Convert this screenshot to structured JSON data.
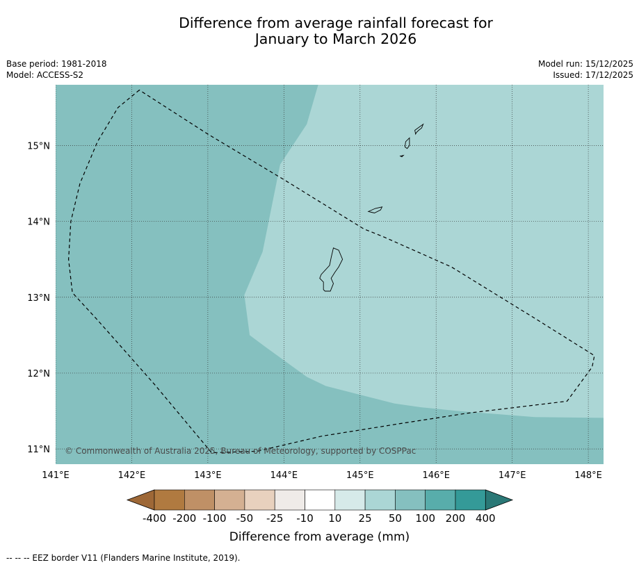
{
  "title": {
    "line1": "Difference from average rainfall forecast for",
    "line2": "January to March 2026"
  },
  "meta": {
    "base_period": "Base period: 1981-2018",
    "model": "Model: ACCESS-S2",
    "model_run": "Model run: 15/12/2025",
    "issued": "Issued: 17/12/2025"
  },
  "map": {
    "lon_range": [
      141.0,
      148.2
    ],
    "lat_range": [
      10.8,
      15.8
    ],
    "lon_ticks": [
      141,
      142,
      143,
      144,
      145,
      146,
      147,
      148
    ],
    "lat_ticks": [
      11,
      12,
      13,
      14,
      15
    ],
    "lon_labels": [
      "141°E",
      "142°E",
      "143°E",
      "144°E",
      "145°E",
      "146°E",
      "147°E",
      "148°E"
    ],
    "lat_labels": [
      "11°N",
      "12°N",
      "13°N",
      "14°N",
      "15°N"
    ],
    "background_category": "50 to 100",
    "background_color": "#85c0bf",
    "region_category": "25 to 50",
    "region_color": "#abd6d5",
    "region_25_50": [
      [
        144.45,
        15.8
      ],
      [
        144.3,
        15.28
      ],
      [
        143.95,
        14.75
      ],
      [
        143.72,
        13.6
      ],
      [
        143.48,
        13.03
      ],
      [
        143.55,
        12.5
      ],
      [
        143.75,
        12.35
      ],
      [
        144.3,
        11.95
      ],
      [
        144.55,
        11.83
      ],
      [
        145.45,
        11.6
      ],
      [
        145.8,
        11.55
      ],
      [
        146.3,
        11.5
      ],
      [
        147.3,
        11.42
      ],
      [
        148.2,
        11.41
      ],
      [
        148.2,
        15.8
      ]
    ],
    "eez_border": [
      [
        142.1,
        15.73
      ],
      [
        141.82,
        15.5
      ],
      [
        141.55,
        15.05
      ],
      [
        141.32,
        14.5
      ],
      [
        141.2,
        14.0
      ],
      [
        141.17,
        13.5
      ],
      [
        141.22,
        13.06
      ],
      [
        141.55,
        12.7
      ],
      [
        142.3,
        11.85
      ],
      [
        143.05,
        10.95
      ],
      [
        143.65,
        10.97
      ],
      [
        144.5,
        11.17
      ],
      [
        145.5,
        11.33
      ],
      [
        146.4,
        11.47
      ],
      [
        147.72,
        11.63
      ],
      [
        148.05,
        12.08
      ],
      [
        148.08,
        12.23
      ],
      [
        147.3,
        12.72
      ],
      [
        146.2,
        13.4
      ],
      [
        145.3,
        13.8
      ],
      [
        145.05,
        13.9
      ],
      [
        144.0,
        14.55
      ],
      [
        143.0,
        15.15
      ],
      [
        142.1,
        15.73
      ]
    ],
    "islands": [
      {
        "name": "Guam",
        "coords": [
          [
            144.65,
            13.65
          ],
          [
            144.72,
            13.62
          ],
          [
            144.77,
            13.5
          ],
          [
            144.72,
            13.4
          ],
          [
            144.67,
            13.33
          ],
          [
            144.62,
            13.25
          ],
          [
            144.65,
            13.18
          ],
          [
            144.61,
            13.08
          ],
          [
            144.54,
            13.08
          ],
          [
            144.52,
            13.1
          ],
          [
            144.52,
            13.2
          ],
          [
            144.47,
            13.25
          ],
          [
            144.49,
            13.3
          ],
          [
            144.6,
            13.42
          ],
          [
            144.62,
            13.52
          ]
        ]
      },
      {
        "name": "Rota",
        "coords": [
          [
            145.11,
            14.13
          ],
          [
            145.2,
            14.17
          ],
          [
            145.29,
            14.19
          ],
          [
            145.27,
            14.15
          ],
          [
            145.19,
            14.11
          ],
          [
            145.15,
            14.12
          ]
        ]
      },
      {
        "name": "Saipan",
        "coords": [
          [
            145.72,
            15.2
          ],
          [
            145.83,
            15.28
          ],
          [
            145.81,
            15.23
          ],
          [
            145.77,
            15.2
          ],
          [
            145.74,
            15.17
          ],
          [
            145.73,
            15.15
          ]
        ]
      },
      {
        "name": "Tinian",
        "coords": [
          [
            145.6,
            15.05
          ],
          [
            145.65,
            15.1
          ],
          [
            145.65,
            15.0
          ],
          [
            145.62,
            14.96
          ],
          [
            145.59,
            14.98
          ]
        ]
      },
      {
        "name": "Aguijan",
        "coords": [
          [
            145.53,
            14.86
          ],
          [
            145.57,
            14.87
          ],
          [
            145.55,
            14.85
          ]
        ]
      }
    ],
    "copyright": "© Commonwealth of Australia 2025, Bureau of Meteorology, supported by COSPPac"
  },
  "legend": {
    "title": "Difference from average (mm)",
    "labels": [
      "-400",
      "-200",
      "-100",
      "-50",
      "-25",
      "-10",
      "10",
      "25",
      "50",
      "100",
      "200",
      "400"
    ],
    "colors": [
      "#b07a40",
      "#bf9066",
      "#d4b092",
      "#e8d1be",
      "#efebe8",
      "#ffffff",
      "#d6eae9",
      "#abd6d5",
      "#85c0bf",
      "#58adab",
      "#349a98"
    ],
    "extend_low_color": "#9e6837",
    "extend_high_color": "#2a7876"
  },
  "footnote": "--  --  -- EEZ border V11 (Flanders Marine Institute, 2019)."
}
